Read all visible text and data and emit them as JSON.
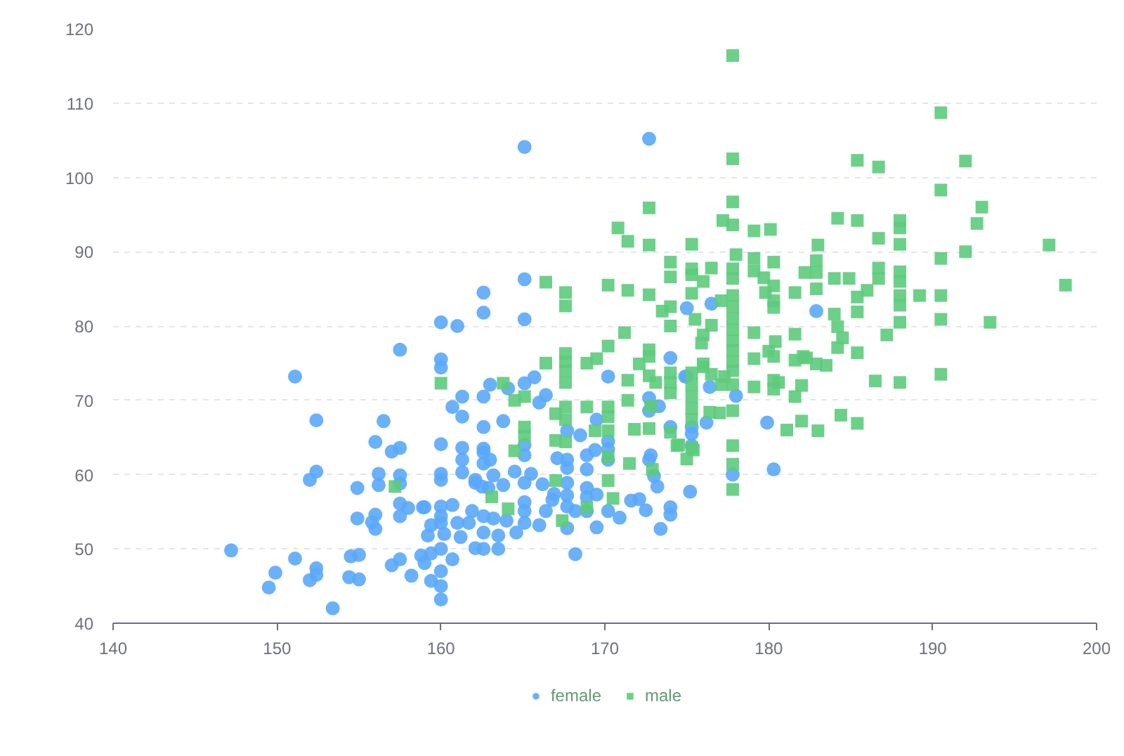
{
  "chart_data": {
    "type": "scatter",
    "xlim": [
      140,
      200
    ],
    "xticks": [
      140,
      150,
      160,
      170,
      180,
      190,
      200
    ],
    "ylim": [
      40,
      120
    ],
    "yticks": [
      40,
      50,
      60,
      70,
      80,
      90,
      100,
      110,
      120
    ],
    "grid": "y",
    "legend": "bottom",
    "series": [
      {
        "name": "female",
        "color": "#5aa9f9",
        "marker": "circle",
        "x": [
          157.5,
          151.1,
          152.4,
          156.5,
          156.0,
          157.0,
          157.5,
          152.4,
          152.0,
          156.2,
          156.2,
          157.5,
          157.5,
          154.9,
          157.5,
          157.5,
          158.0,
          158.9,
          154.9,
          156.0,
          155.8,
          156.0,
          147.2,
          151.1,
          149.9,
          149.5,
          152.4,
          152.4,
          152.0,
          153.4,
          154.5,
          155.0,
          154.4,
          155.0,
          157.0,
          157.5,
          158.2,
          159.2,
          158.8,
          159.0,
          165.1,
          162.6,
          162.6,
          165.1,
          160.0,
          161.0,
          160.0,
          160.0,
          163.0,
          165.1,
          165.7,
          162.6,
          161.3,
          164.1,
          160.7,
          166.4,
          166.0,
          161.3,
          162.6,
          163.8,
          160.0,
          161.3,
          162.6,
          162.6,
          161.3,
          163.0,
          162.6,
          160.0,
          160.0,
          161.3,
          162.1,
          163.2,
          162.5,
          163.8,
          164.5,
          165.1,
          165.5,
          165.1,
          165.1,
          166.2,
          167.1,
          167.7,
          167.7,
          168.5,
          167.7,
          168.9,
          168.9,
          169.4,
          169.5,
          170.2,
          170.2,
          170.2,
          170.2,
          172.7,
          172.8,
          173.0,
          173.2,
          172.7,
          172.7,
          173.3,
          174.0,
          174.9,
          174.0,
          175.3,
          175.3,
          175.2,
          174.0,
          174.0,
          172.1,
          172.5,
          173.4,
          171.6,
          170.9,
          170.2,
          169.5,
          168.9,
          168.9,
          169.5,
          168.9,
          167.7,
          167.7,
          167.7,
          167.7,
          168.2,
          166.9,
          166.8,
          166.4,
          166.0,
          165.1,
          165.1,
          165.1,
          164.6,
          164.0,
          163.5,
          163.5,
          163.2,
          162.6,
          162.1,
          162.6,
          162.6,
          161.9,
          161.7,
          161.2,
          161.0,
          160.7,
          160.0,
          160.0,
          160.0,
          160.2,
          159.4,
          160.0,
          159.4,
          160.0,
          160.7,
          159.4,
          160.0,
          160.0,
          168.2,
          162.1,
          162.9,
          159.0,
          175.0,
          176.4,
          178.0,
          176.2,
          179.9,
          180.3,
          177.8,
          175.3,
          175.0,
          176.5,
          182.9,
          165.1,
          172.7
        ],
        "values": [
          76.8,
          73.2,
          67.3,
          67.2,
          64.4,
          63.1,
          63.6,
          60.4,
          59.3,
          60.1,
          58.6,
          59.9,
          58.8,
          58.2,
          56.1,
          54.4,
          55.5,
          55.6,
          54.1,
          54.6,
          53.6,
          52.7,
          49.8,
          48.7,
          46.8,
          44.8,
          47.4,
          46.5,
          45.8,
          42.0,
          49.0,
          49.2,
          46.2,
          45.9,
          47.8,
          48.6,
          46.4,
          51.8,
          49.1,
          48.1,
          86.3,
          84.5,
          81.8,
          80.9,
          80.5,
          80.0,
          75.5,
          74.4,
          72.1,
          72.3,
          73.1,
          70.5,
          70.5,
          71.6,
          69.1,
          70.7,
          69.7,
          67.8,
          66.4,
          67.2,
          64.1,
          63.6,
          63.5,
          63.0,
          62.0,
          62.0,
          61.5,
          60.1,
          59.3,
          60.3,
          59.3,
          59.9,
          58.4,
          58.6,
          60.4,
          58.9,
          60.1,
          62.6,
          64.0,
          58.7,
          62.2,
          62.0,
          60.9,
          65.3,
          65.9,
          62.6,
          60.7,
          63.3,
          67.4,
          73.2,
          64.5,
          63.4,
          62.0,
          62.0,
          62.6,
          59.8,
          58.4,
          70.3,
          68.6,
          69.2,
          75.7,
          73.2,
          66.4,
          66.4,
          65.5,
          57.7,
          55.6,
          54.6,
          56.7,
          55.2,
          52.7,
          56.5,
          54.2,
          55.1,
          52.9,
          57.0,
          58.2,
          57.3,
          55.1,
          58.9,
          57.2,
          55.7,
          52.8,
          55.1,
          57.4,
          56.6,
          55.1,
          53.2,
          53.5,
          55.1,
          56.3,
          52.2,
          53.8,
          51.8,
          50.0,
          54.1,
          50.0,
          50.1,
          52.2,
          54.4,
          55.1,
          53.5,
          51.6,
          53.5,
          55.9,
          55.7,
          54.4,
          53.5,
          52.0,
          53.2,
          50.0,
          49.4,
          47.0,
          48.6,
          45.7,
          45.0,
          43.2,
          49.3,
          58.9,
          58.2,
          55.6,
          73.2,
          71.8,
          70.6,
          67.0,
          67.0,
          60.7,
          60.0,
          63.9,
          82.4,
          83.0,
          82.0,
          104.1,
          105.2
        ]
      },
      {
        "name": "male",
        "color": "#5dcb7c",
        "marker": "square",
        "x": [
          166.4,
          167.6,
          167.6,
          170.2,
          171.4,
          172.7,
          173.5,
          174.0,
          174.0,
          174.0,
          175.3,
          175.3,
          171.2,
          170.2,
          169.5,
          168.9,
          167.6,
          167.6,
          167.6,
          167.6,
          166.4,
          160.0,
          163.8,
          165.1,
          164.5,
          167.0,
          167.6,
          167.6,
          168.9,
          170.2,
          170.2,
          171.4,
          171.4,
          172.1,
          172.7,
          172.7,
          172.7,
          173.1,
          174.0,
          174.0,
          174.0,
          172.8,
          175.3,
          175.3,
          175.3,
          175.3,
          175.3,
          175.3,
          174.0,
          174.5,
          172.7,
          171.8,
          171.5,
          172.9,
          170.2,
          170.2,
          170.5,
          168.9,
          169.4,
          170.2,
          165.1,
          165.1,
          164.5,
          167.0,
          167.6,
          167.0,
          163.1,
          164.1,
          167.4,
          157.2,
          177.8,
          177.8,
          190.5,
          190.5,
          185.4,
          186.7,
          177.8,
          177.8,
          177.2,
          175.3,
          179.1,
          180.1,
          184.2,
          185.4,
          186.7,
          188.0,
          188.0,
          188.0,
          183.0,
          178.0,
          179.1,
          182.9,
          182.9,
          180.3,
          179.1,
          177.8,
          177.8,
          175.3,
          176.0,
          176.5,
          179.7,
          182.2,
          184.0,
          184.9,
          186.7,
          186.7,
          188.0,
          188.0,
          188.0,
          188.0,
          186.0,
          185.4,
          185.4,
          189.2,
          190.5,
          190.5,
          188.0,
          187.2,
          180.3,
          180.3,
          180.3,
          179.8,
          181.6,
          182.9,
          177.8,
          177.8,
          177.8,
          177.8,
          177.8,
          177.8,
          177.8,
          177.8,
          177.1,
          176.5,
          175.5,
          176.0,
          175.9,
          179.1,
          181.6,
          184.0,
          184.2,
          184.5,
          184.2,
          180.4,
          180.0,
          180.3,
          185.4,
          179.1,
          181.6,
          182.1,
          176.0,
          182.3,
          182.9,
          183.5,
          186.5,
          188.0,
          190.5,
          182.0,
          181.6,
          180.3,
          180.6,
          180.3,
          179.1,
          177.8,
          177.8,
          177.1,
          177.0,
          176.0,
          176.5,
          177.3,
          176.4,
          181.1,
          182.0,
          183.0,
          184.4,
          185.4,
          177.8,
          177.8,
          177.8,
          175.4,
          175.0,
          174.4,
          172.7,
          170.8,
          171.4,
          172.7,
          174.0,
          192.0,
          193.0,
          192.7,
          197.1,
          192.0,
          190.5,
          198.1,
          193.5
        ],
        "values": [
          85.9,
          84.5,
          82.7,
          85.5,
          84.8,
          84.2,
          82.0,
          82.6,
          80.0,
          86.6,
          86.9,
          84.4,
          79.1,
          77.3,
          75.6,
          75.0,
          76.3,
          75.2,
          74.0,
          72.4,
          75.0,
          72.3,
          72.3,
          70.5,
          70.0,
          68.2,
          69.1,
          67.4,
          69.1,
          69.1,
          67.8,
          70.0,
          72.7,
          74.9,
          76.8,
          75.9,
          73.3,
          72.4,
          73.7,
          72.4,
          71.0,
          69.2,
          73.7,
          72.1,
          70.5,
          68.9,
          67.4,
          63.6,
          65.7,
          64.0,
          66.2,
          66.1,
          61.5,
          60.7,
          62.4,
          59.2,
          56.8,
          55.6,
          65.9,
          65.9,
          66.4,
          65.2,
          63.2,
          64.6,
          64.4,
          59.2,
          57.0,
          55.4,
          53.8,
          58.4,
          116.4,
          102.5,
          108.7,
          98.3,
          102.3,
          101.4,
          96.7,
          93.6,
          94.2,
          91.0,
          92.8,
          93.0,
          94.5,
          94.2,
          91.8,
          94.2,
          93.2,
          91.0,
          90.9,
          89.6,
          89.1,
          88.8,
          87.2,
          88.6,
          87.4,
          87.7,
          86.4,
          87.7,
          86.0,
          87.8,
          86.5,
          87.2,
          86.4,
          86.4,
          87.8,
          86.4,
          87.3,
          86.0,
          84.1,
          82.8,
          84.8,
          83.9,
          81.9,
          84.1,
          84.1,
          80.9,
          80.5,
          78.8,
          85.4,
          83.4,
          82.5,
          84.5,
          84.5,
          85.0,
          84.1,
          82.6,
          81.0,
          79.5,
          78.0,
          76.7,
          75.2,
          74.0,
          83.4,
          80.1,
          80.9,
          78.8,
          77.7,
          79.1,
          78.9,
          81.6,
          79.9,
          78.4,
          77.1,
          77.9,
          76.6,
          75.9,
          76.4,
          75.6,
          75.4,
          75.9,
          74.9,
          75.7,
          74.9,
          74.7,
          72.6,
          72.4,
          73.5,
          72.0,
          70.5,
          72.7,
          72.4,
          71.5,
          71.8,
          72.1,
          68.6,
          72.1,
          68.3,
          74.5,
          73.5,
          73.2,
          68.4,
          66.0,
          67.2,
          65.9,
          68.0,
          66.9,
          63.9,
          61.4,
          58.0,
          63.3,
          62.1,
          63.9,
          95.9,
          93.2,
          91.4,
          90.9,
          88.6,
          102.2,
          96.0,
          93.8,
          90.9,
          90.0,
          89.1,
          85.5,
          80.5
        ]
      }
    ]
  }
}
